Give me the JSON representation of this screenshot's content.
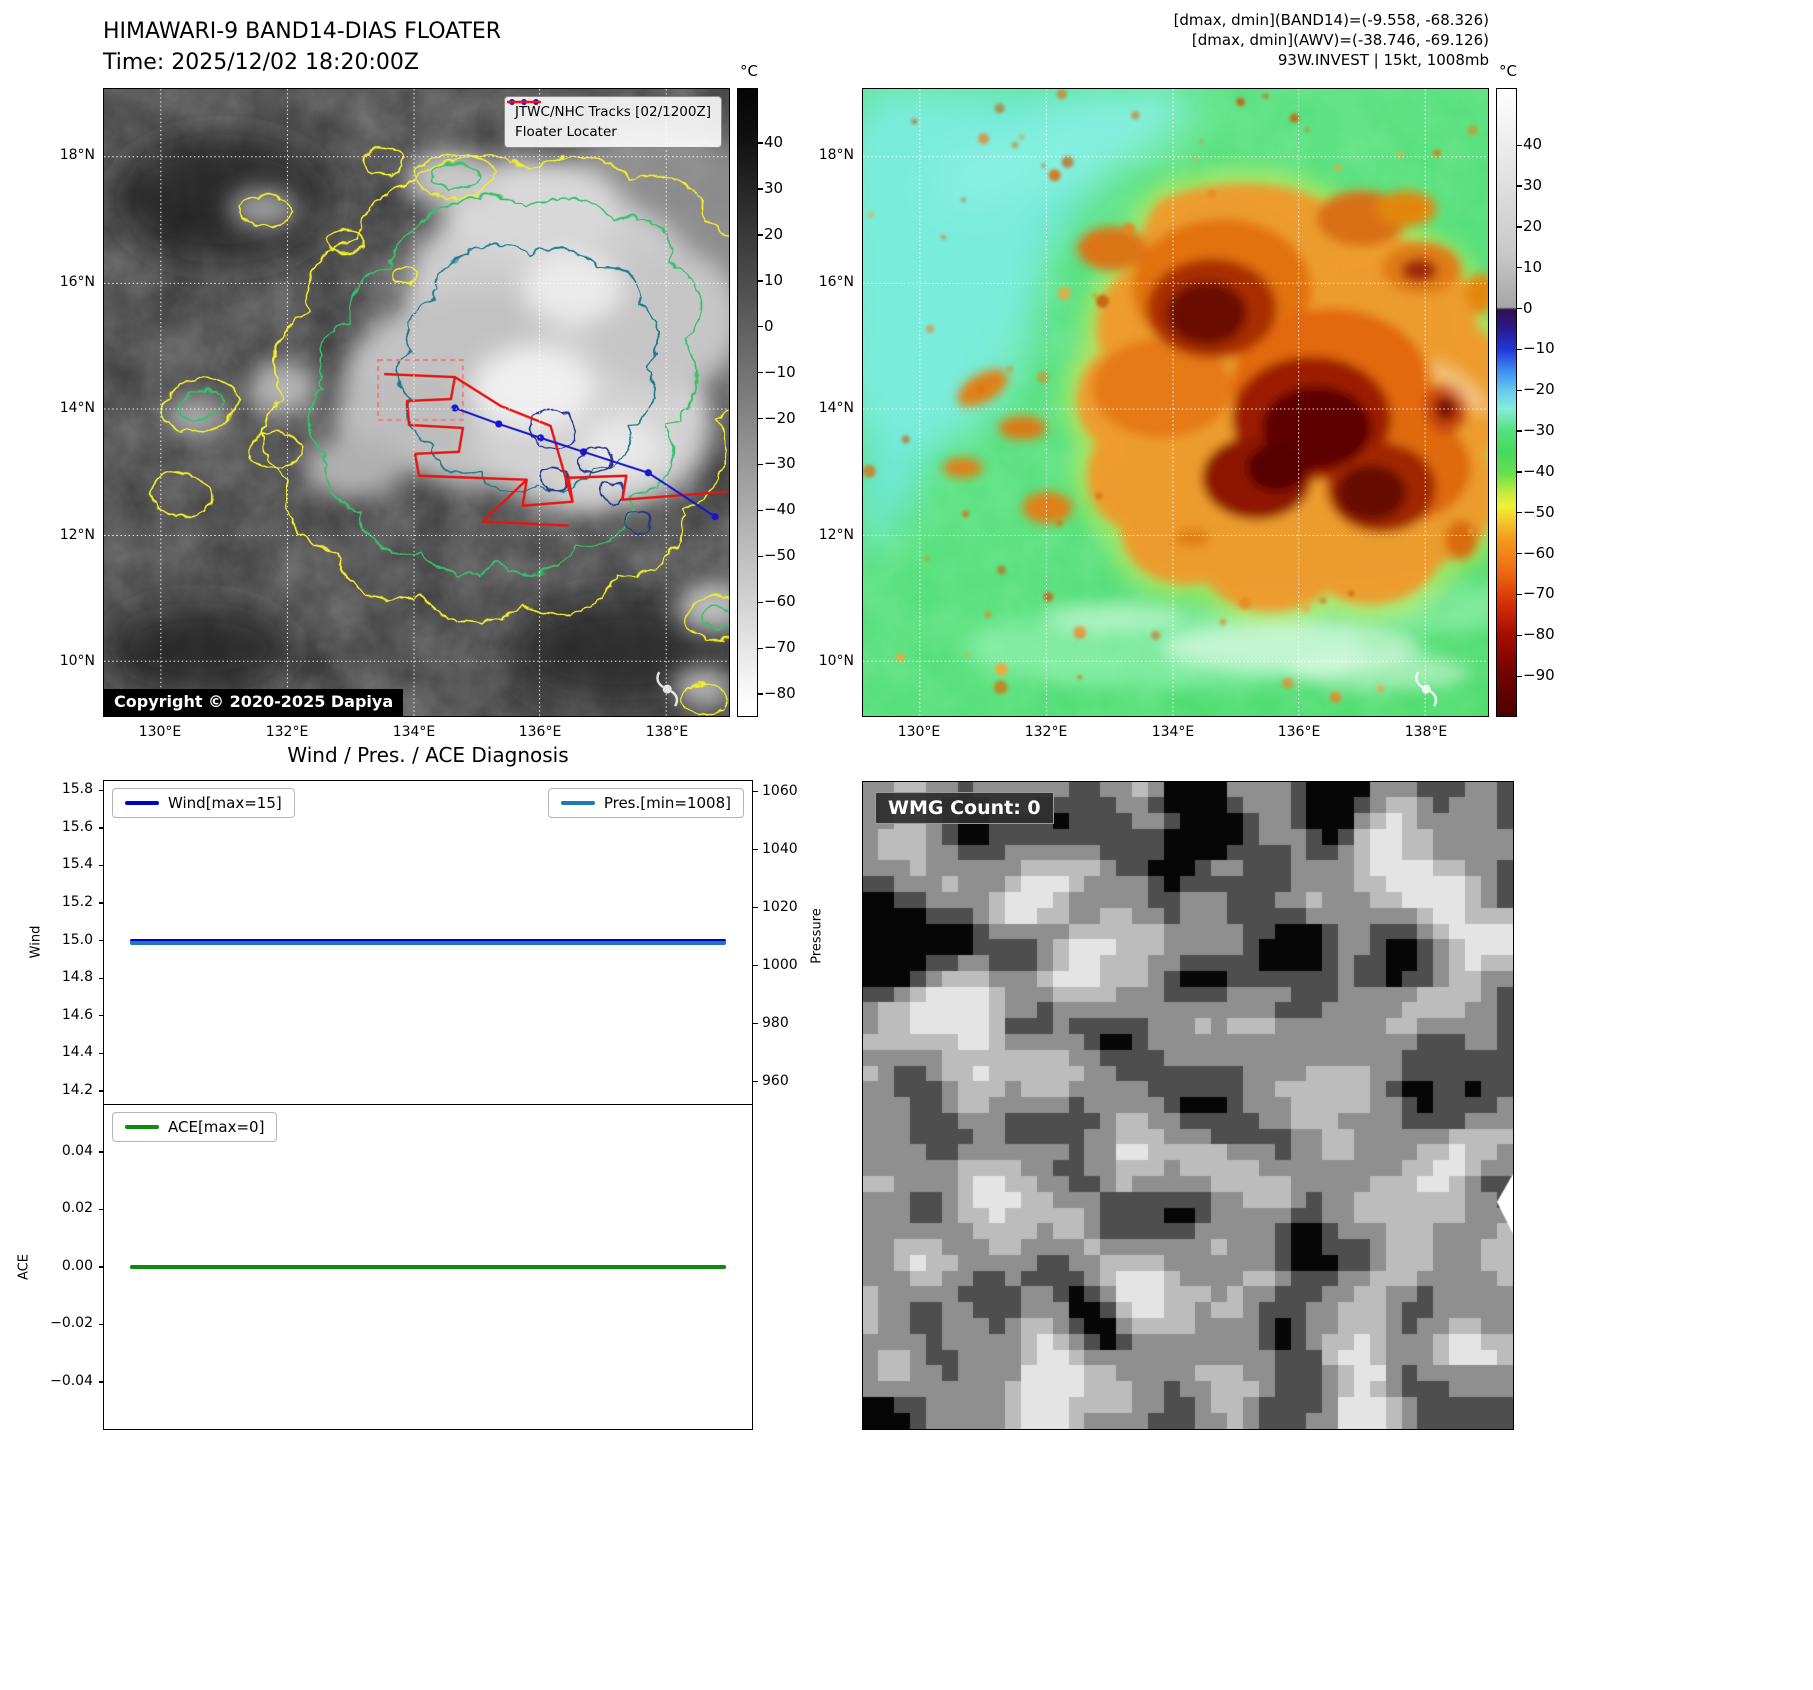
{
  "band14_panel": {
    "title": "HIMAWARI-9 BAND14-DIAS FLOATER",
    "time_label": "Time: 2025/12/02 18:20:00Z",
    "legend": {
      "track_label": "JTWC/NHC Tracks [02/1200Z]",
      "track_color": "#1616cc",
      "floater_label": "Floater Locater",
      "floater_color": "#e81410"
    },
    "copyright": "Copyright © 2020-2025 Dapiya",
    "lat_labels": [
      "18°N",
      "16°N",
      "14°N",
      "12°N",
      "10°N"
    ],
    "lon_labels": [
      "130°E",
      "132°E",
      "134°E",
      "136°E",
      "138°E"
    ],
    "colorbar": {
      "unit": "°C",
      "ticks": [
        40,
        30,
        20,
        10,
        0,
        -10,
        -20,
        -30,
        -40,
        -50,
        -60,
        -70,
        -80
      ]
    }
  },
  "awv_panel": {
    "header_lines": [
      "[dmax, dmin](BAND14)=(-9.558, -68.326)",
      "[dmax, dmin](AWV)=(-38.746, -69.126)",
      "93W.INVEST | 15kt, 1008mb"
    ],
    "lat_labels": [
      "18°N",
      "16°N",
      "14°N",
      "12°N",
      "10°N"
    ],
    "lon_labels": [
      "130°E",
      "132°E",
      "134°E",
      "136°E",
      "138°E"
    ],
    "colorbar": {
      "unit": "°C",
      "ticks": [
        40,
        30,
        20,
        10,
        0,
        -10,
        -20,
        -30,
        -40,
        -50,
        -60,
        -70,
        -80,
        -90
      ]
    }
  },
  "chart_data": {
    "type": "line",
    "title": "Wind / Pres. / ACE Diagnosis",
    "subplots": [
      {
        "ylabel_left": "Wind",
        "ylabel_right": "Pressure",
        "yticks_left": [
          15.8,
          15.6,
          15.4,
          15.2,
          15.0,
          14.8,
          14.6,
          14.4,
          14.2
        ],
        "ylim_left": [
          14.125,
          15.855
        ],
        "yticks_right": [
          1060,
          1040,
          1020,
          1000,
          980,
          960
        ],
        "ylim_right": [
          952,
          1064
        ],
        "series": [
          {
            "name": "Wind[max=15]",
            "axis": "left",
            "constant_value": 15,
            "color": "#0000cd"
          },
          {
            "name": "Pres.[min=1008]",
            "axis": "right",
            "constant_value": 1008,
            "color": "#1f77b4"
          }
        ]
      },
      {
        "ylabel_left": "ACE",
        "yticks_left": [
          0.04,
          0.02,
          0.0,
          -0.02,
          -0.04
        ],
        "ylim_left": [
          -0.0567,
          0.0563
        ],
        "series": [
          {
            "name": "ACE[max=0]",
            "axis": "left",
            "constant_value": 0,
            "color": "#0b8a0b"
          }
        ]
      }
    ],
    "x_axis_ticks_visible": false
  },
  "wmg_panel": {
    "label": "WMG Count: 0"
  }
}
